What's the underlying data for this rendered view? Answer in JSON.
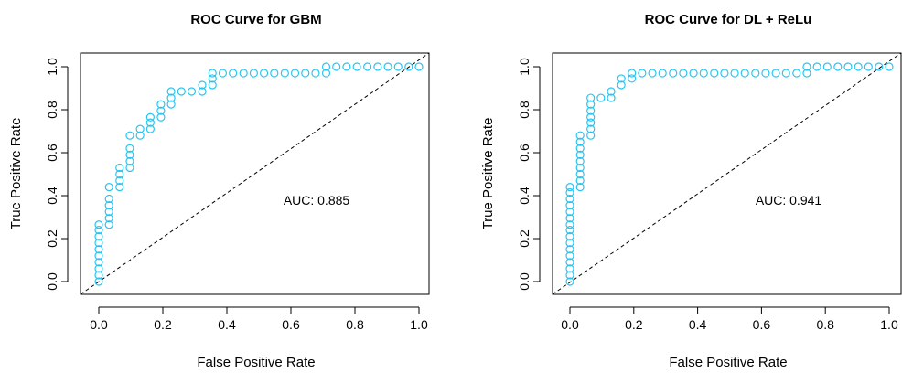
{
  "chart_data": [
    {
      "type": "scatter",
      "title": "ROC Curve for GBM",
      "xlabel": "False Positive Rate",
      "ylabel": "True Positive Rate",
      "xlim": [
        0,
        1
      ],
      "ylim": [
        0,
        1
      ],
      "xticks": [
        "0.0",
        "0.2",
        "0.4",
        "0.6",
        "0.8",
        "1.0"
      ],
      "yticks": [
        "0.0",
        "0.2",
        "0.4",
        "0.6",
        "0.8",
        "1.0"
      ],
      "annotation": "AUC: 0.885",
      "reference_line": "diagonal-dashed",
      "point_color": "#29c5f2",
      "series": [
        {
          "x": [
            0,
            0,
            0,
            0,
            0,
            0,
            0,
            0,
            0,
            0,
            0.032,
            0.032,
            0.032,
            0.032,
            0.032,
            0.032,
            0.065,
            0.065,
            0.065,
            0.065,
            0.097,
            0.097,
            0.097,
            0.097,
            0.097,
            0.129,
            0.129,
            0.161,
            0.161,
            0.161,
            0.194,
            0.194,
            0.194,
            0.226,
            0.226,
            0.226,
            0.258,
            0.29,
            0.323,
            0.323,
            0.355,
            0.355,
            0.355,
            0.387,
            0.419,
            0.452,
            0.484,
            0.516,
            0.548,
            0.581,
            0.613,
            0.645,
            0.677,
            0.71,
            0.71,
            0.742,
            0.774,
            0.806,
            0.839,
            0.871,
            0.903,
            0.935,
            0.968,
            1.0
          ],
          "y": [
            0.0,
            0.03,
            0.06,
            0.09,
            0.12,
            0.15,
            0.18,
            0.21,
            0.24,
            0.265,
            0.265,
            0.295,
            0.325,
            0.355,
            0.385,
            0.44,
            0.44,
            0.47,
            0.5,
            0.53,
            0.53,
            0.56,
            0.59,
            0.62,
            0.68,
            0.68,
            0.71,
            0.71,
            0.74,
            0.765,
            0.765,
            0.795,
            0.825,
            0.825,
            0.855,
            0.885,
            0.885,
            0.885,
            0.885,
            0.915,
            0.915,
            0.945,
            0.97,
            0.97,
            0.97,
            0.97,
            0.97,
            0.97,
            0.97,
            0.97,
            0.97,
            0.97,
            0.97,
            0.97,
            1.0,
            1.0,
            1.0,
            1.0,
            1.0,
            1.0,
            1.0,
            1.0,
            1.0,
            1.0
          ]
        }
      ]
    },
    {
      "type": "scatter",
      "title": "ROC Curve for DL + ReLu",
      "xlabel": "False Positive Rate",
      "ylabel": "True Positive Rate",
      "xlim": [
        0,
        1
      ],
      "ylim": [
        0,
        1
      ],
      "xticks": [
        "0.0",
        "0.2",
        "0.4",
        "0.6",
        "0.8",
        "1.0"
      ],
      "yticks": [
        "0.0",
        "0.2",
        "0.4",
        "0.6",
        "0.8",
        "1.0"
      ],
      "annotation": "AUC: 0.941",
      "reference_line": "diagonal-dashed",
      "point_color": "#29c5f2",
      "series": [
        {
          "x": [
            0,
            0,
            0,
            0,
            0,
            0,
            0,
            0,
            0,
            0,
            0,
            0,
            0,
            0,
            0,
            0,
            0.032,
            0.032,
            0.032,
            0.032,
            0.032,
            0.032,
            0.032,
            0.032,
            0.032,
            0.065,
            0.065,
            0.065,
            0.065,
            0.065,
            0.065,
            0.065,
            0.097,
            0.129,
            0.129,
            0.161,
            0.161,
            0.194,
            0.194,
            0.226,
            0.258,
            0.29,
            0.323,
            0.355,
            0.387,
            0.419,
            0.452,
            0.484,
            0.516,
            0.548,
            0.581,
            0.613,
            0.645,
            0.677,
            0.71,
            0.742,
            0.742,
            0.774,
            0.806,
            0.839,
            0.871,
            0.903,
            0.935,
            0.968,
            1.0
          ],
          "y": [
            0.0,
            0.03,
            0.06,
            0.09,
            0.12,
            0.15,
            0.18,
            0.21,
            0.24,
            0.265,
            0.295,
            0.325,
            0.355,
            0.385,
            0.415,
            0.44,
            0.44,
            0.47,
            0.5,
            0.53,
            0.56,
            0.59,
            0.62,
            0.65,
            0.68,
            0.68,
            0.71,
            0.74,
            0.765,
            0.795,
            0.825,
            0.855,
            0.855,
            0.855,
            0.885,
            0.915,
            0.945,
            0.945,
            0.97,
            0.97,
            0.97,
            0.97,
            0.97,
            0.97,
            0.97,
            0.97,
            0.97,
            0.97,
            0.97,
            0.97,
            0.97,
            0.97,
            0.97,
            0.97,
            0.97,
            0.97,
            1.0,
            1.0,
            1.0,
            1.0,
            1.0,
            1.0,
            1.0,
            1.0,
            1.0
          ]
        }
      ]
    }
  ]
}
